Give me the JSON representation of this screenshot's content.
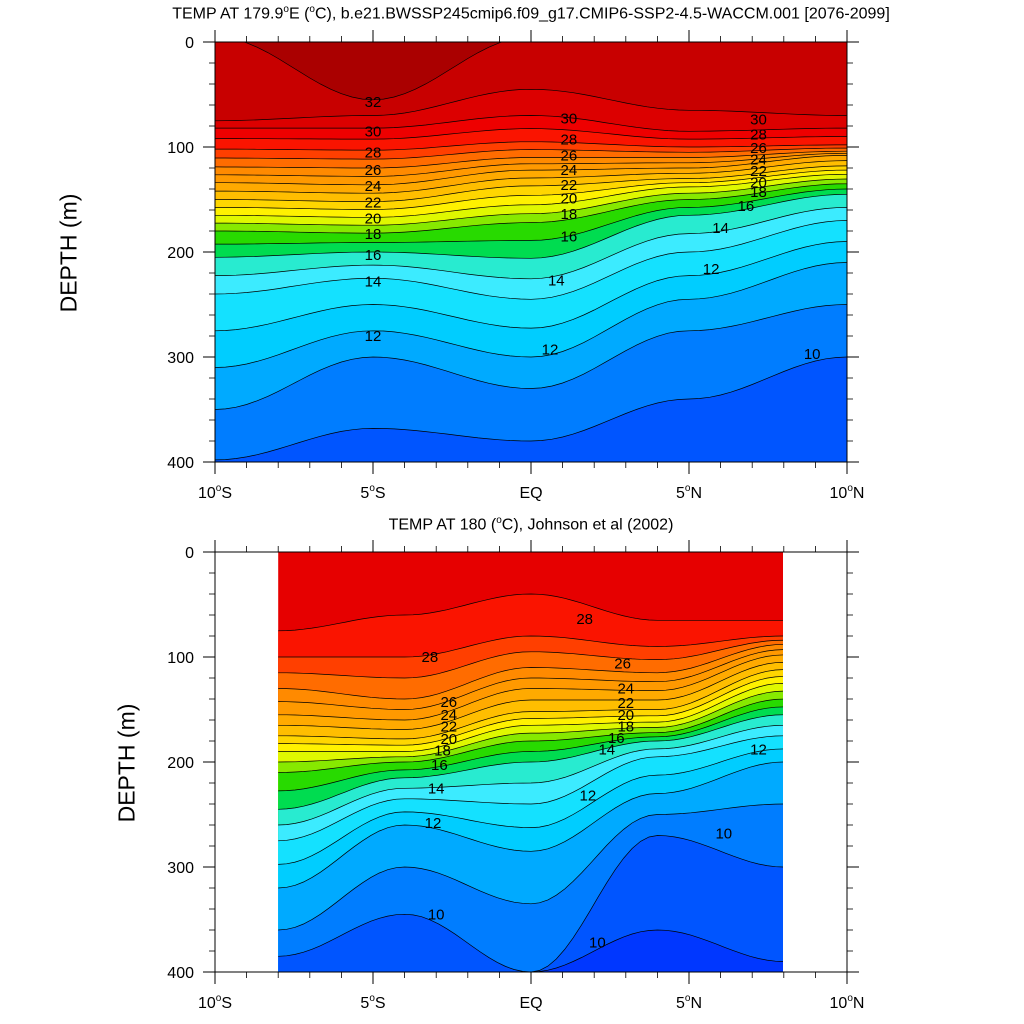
{
  "chart_data": [
    {
      "type": "contour",
      "title_prefix": "TEMP AT 179.9",
      "title_deg": "o",
      "title_suffix": "E (",
      "title_deg2": "o",
      "title_suffix2": "C), b.e21.BWSSP245cmip6.f09_g17.CMIP6-SSP2-4.5-WACCM.001 [2076-2099]",
      "ylabel": "DEPTH (m)",
      "y_ticks": [
        "0",
        "100",
        "200",
        "300",
        "400"
      ],
      "ylim": [
        0,
        400
      ],
      "x_ticks": [
        {
          "label": "10",
          "deg": "o",
          "suffix": "S",
          "lat": -10
        },
        {
          "label": "5",
          "deg": "o",
          "suffix": "S",
          "lat": -5
        },
        {
          "label": "EQ",
          "deg": "",
          "suffix": "",
          "lat": 0
        },
        {
          "label": "5",
          "deg": "o",
          "suffix": "N",
          "lat": 5
        },
        {
          "label": "10",
          "deg": "o",
          "suffix": "N",
          "lat": 10
        }
      ],
      "xlim": [
        -10,
        10
      ],
      "data_lat_range": [
        -10,
        10
      ],
      "contour_interval": 1,
      "fill_levels": [
        33,
        32,
        31,
        30,
        29,
        28,
        27,
        26,
        25,
        24,
        23,
        22,
        21,
        20,
        19,
        18,
        17,
        16,
        15,
        14,
        13,
        12,
        11,
        10,
        9
      ],
      "isotherm_depths": {
        "lats": [
          -10,
          -5,
          0,
          5,
          10
        ],
        "t32": [
          null,
          55,
          null,
          null,
          null
        ],
        "t31": [
          75,
          70,
          45,
          65,
          70
        ],
        "t30": [
          82,
          82,
          70,
          85,
          82
        ],
        "t28": [
          102,
          103,
          95,
          100,
          98
        ],
        "t26": [
          119,
          120,
          110,
          110,
          104
        ],
        "t24": [
          134,
          136,
          122,
          120,
          108
        ],
        "t22": [
          150,
          152,
          137,
          130,
          118
        ],
        "t20": [
          165,
          167,
          155,
          138,
          126
        ],
        "t18": [
          180,
          182,
          172,
          150,
          135
        ],
        "t16": [
          205,
          200,
          206,
          165,
          145
        ],
        "t14": [
          240,
          225,
          245,
          200,
          170
        ],
        "t12": [
          310,
          275,
          300,
          245,
          210
        ],
        "t11": [
          350,
          300,
          330,
          275,
          250
        ],
        "t10": [
          398,
          368,
          380,
          340,
          300
        ]
      },
      "contour_labels": [
        {
          "value": "32",
          "lat": -5,
          "depth": 57
        },
        {
          "value": "30",
          "lat": -5,
          "depth": 85
        },
        {
          "value": "28",
          "lat": -5,
          "depth": 105
        },
        {
          "value": "26",
          "lat": -5,
          "depth": 122
        },
        {
          "value": "24",
          "lat": -5,
          "depth": 137
        },
        {
          "value": "22",
          "lat": -5,
          "depth": 153
        },
        {
          "value": "20",
          "lat": -5,
          "depth": 168
        },
        {
          "value": "18",
          "lat": -5,
          "depth": 183
        },
        {
          "value": "16",
          "lat": -5,
          "depth": 203
        },
        {
          "value": "14",
          "lat": -5,
          "depth": 228
        },
        {
          "value": "12",
          "lat": -5,
          "depth": 280
        },
        {
          "value": "30",
          "lat": 1.2,
          "depth": 73
        },
        {
          "value": "28",
          "lat": 1.2,
          "depth": 93
        },
        {
          "value": "26",
          "lat": 1.2,
          "depth": 108
        },
        {
          "value": "24",
          "lat": 1.2,
          "depth": 122
        },
        {
          "value": "22",
          "lat": 1.2,
          "depth": 136
        },
        {
          "value": "20",
          "lat": 1.2,
          "depth": 149
        },
        {
          "value": "18",
          "lat": 1.2,
          "depth": 164
        },
        {
          "value": "16",
          "lat": 1.2,
          "depth": 185
        },
        {
          "value": "14",
          "lat": 0.8,
          "depth": 227
        },
        {
          "value": "12",
          "lat": 0.6,
          "depth": 293
        },
        {
          "value": "30",
          "lat": 7.2,
          "depth": 74
        },
        {
          "value": "28",
          "lat": 7.2,
          "depth": 88
        },
        {
          "value": "26",
          "lat": 7.2,
          "depth": 101
        },
        {
          "value": "24",
          "lat": 7.2,
          "depth": 112
        },
        {
          "value": "22",
          "lat": 7.2,
          "depth": 123
        },
        {
          "value": "20",
          "lat": 7.2,
          "depth": 134
        },
        {
          "value": "18",
          "lat": 7.2,
          "depth": 143
        },
        {
          "value": "16",
          "lat": 6.8,
          "depth": 156
        },
        {
          "value": "14",
          "lat": 6.0,
          "depth": 177
        },
        {
          "value": "12",
          "lat": 5.7,
          "depth": 216
        },
        {
          "value": "10",
          "lat": 8.9,
          "depth": 297
        }
      ]
    },
    {
      "type": "contour",
      "title_prefix": "TEMP AT 180 (",
      "title_deg": "o",
      "title_suffix": "C), Johnson et al (2002)",
      "ylabel": "DEPTH (m)",
      "y_ticks": [
        "0",
        "100",
        "200",
        "300",
        "400"
      ],
      "ylim": [
        0,
        400
      ],
      "x_ticks": [
        {
          "label": "10",
          "deg": "o",
          "suffix": "S",
          "lat": -10
        },
        {
          "label": "5",
          "deg": "o",
          "suffix": "S",
          "lat": -5
        },
        {
          "label": "EQ",
          "deg": "",
          "suffix": "",
          "lat": 0
        },
        {
          "label": "5",
          "deg": "o",
          "suffix": "N",
          "lat": 5
        },
        {
          "label": "10",
          "deg": "o",
          "suffix": "N",
          "lat": 10
        }
      ],
      "xlim": [
        -10,
        10
      ],
      "data_lat_range": [
        -8,
        8
      ],
      "contour_interval": 1,
      "fill_levels": [
        30,
        29,
        28,
        27,
        26,
        25,
        24,
        23,
        22,
        21,
        20,
        19,
        18,
        17,
        16,
        15,
        14,
        13,
        12,
        11,
        10,
        9,
        8
      ],
      "isotherm_depths": {
        "lats": [
          -8,
          -4,
          0,
          4,
          8
        ],
        "t29": [
          75,
          60,
          40,
          65,
          65
        ],
        "t28": [
          100,
          100,
          80,
          90,
          80
        ],
        "t26": [
          130,
          140,
          110,
          115,
          88
        ],
        "t24": [
          155,
          160,
          130,
          132,
          98
        ],
        "t22": [
          175,
          178,
          152,
          150,
          112
        ],
        "t20": [
          190,
          190,
          165,
          162,
          125
        ],
        "t18": [
          210,
          200,
          180,
          172,
          140
        ],
        "t16": [
          245,
          215,
          200,
          180,
          155
        ],
        "t14": [
          275,
          235,
          240,
          195,
          175
        ],
        "t12": [
          320,
          260,
          285,
          230,
          200
        ],
        "t11": [
          360,
          300,
          335,
          250,
          240
        ],
        "t10": [
          385,
          345,
          400,
          270,
          300
        ],
        "t9": [
          400,
          400,
          400,
          360,
          390
        ]
      },
      "contour_labels": [
        {
          "value": "28",
          "lat": 1.7,
          "depth": 64
        },
        {
          "value": "28",
          "lat": -3.2,
          "depth": 100
        },
        {
          "value": "26",
          "lat": 2.9,
          "depth": 106
        },
        {
          "value": "24",
          "lat": 3.0,
          "depth": 130
        },
        {
          "value": "22",
          "lat": 3.0,
          "depth": 144
        },
        {
          "value": "20",
          "lat": 3.0,
          "depth": 155
        },
        {
          "value": "18",
          "lat": 3.0,
          "depth": 166
        },
        {
          "value": "16",
          "lat": 2.7,
          "depth": 177
        },
        {
          "value": "14",
          "lat": 2.4,
          "depth": 188
        },
        {
          "value": "12",
          "lat": 7.2,
          "depth": 188
        },
        {
          "value": "26",
          "lat": -2.6,
          "depth": 143
        },
        {
          "value": "24",
          "lat": -2.6,
          "depth": 155
        },
        {
          "value": "22",
          "lat": -2.6,
          "depth": 166
        },
        {
          "value": "20",
          "lat": -2.6,
          "depth": 178
        },
        {
          "value": "18",
          "lat": -2.8,
          "depth": 189
        },
        {
          "value": "16",
          "lat": -2.9,
          "depth": 203
        },
        {
          "value": "14",
          "lat": -3.0,
          "depth": 225
        },
        {
          "value": "12",
          "lat": -3.1,
          "depth": 258
        },
        {
          "value": "12",
          "lat": 1.8,
          "depth": 232
        },
        {
          "value": "10",
          "lat": 6.1,
          "depth": 268
        },
        {
          "value": "10",
          "lat": -3.0,
          "depth": 345
        },
        {
          "value": "10",
          "lat": 2.1,
          "depth": 372
        }
      ]
    }
  ]
}
